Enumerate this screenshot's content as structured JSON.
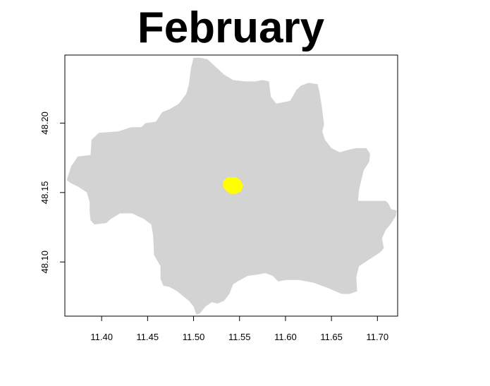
{
  "title": "February",
  "colors": {
    "region_fill": "#d3d3d3",
    "highlight_fill": "#ffff00",
    "axis": "#000000",
    "background": "#ffffff"
  },
  "map": {
    "x_range": [
      11.36,
      11.722
    ],
    "y_range": [
      48.061,
      48.249
    ],
    "x_ticks": [
      {
        "value": 11.4,
        "label": "11.40"
      },
      {
        "value": 11.45,
        "label": "11.45"
      },
      {
        "value": 11.5,
        "label": "11.50"
      },
      {
        "value": 11.55,
        "label": "11.55"
      },
      {
        "value": 11.6,
        "label": "11.60"
      },
      {
        "value": 11.65,
        "label": "11.65"
      },
      {
        "value": 11.7,
        "label": "11.70"
      }
    ],
    "y_ticks": [
      {
        "value": 48.1,
        "label": "48.10"
      },
      {
        "value": 48.15,
        "label": "48.15"
      },
      {
        "value": 48.2,
        "label": "48.20"
      }
    ],
    "region_outline": [
      [
        11.362,
        48.159
      ],
      [
        11.367,
        48.169
      ],
      [
        11.374,
        48.176
      ],
      [
        11.388,
        48.177
      ],
      [
        11.389,
        48.188
      ],
      [
        11.397,
        48.193
      ],
      [
        11.418,
        48.194
      ],
      [
        11.432,
        48.197
      ],
      [
        11.443,
        48.197
      ],
      [
        11.448,
        48.2
      ],
      [
        11.459,
        48.201
      ],
      [
        11.466,
        48.208
      ],
      [
        11.474,
        48.21
      ],
      [
        11.484,
        48.214
      ],
      [
        11.492,
        48.221
      ],
      [
        11.495,
        48.228
      ],
      [
        11.497,
        48.239
      ],
      [
        11.5,
        48.247
      ],
      [
        11.507,
        48.247
      ],
      [
        11.515,
        48.246
      ],
      [
        11.525,
        48.24
      ],
      [
        11.533,
        48.235
      ],
      [
        11.543,
        48.231
      ],
      [
        11.556,
        48.23
      ],
      [
        11.567,
        48.23
      ],
      [
        11.575,
        48.231
      ],
      [
        11.582,
        48.23
      ],
      [
        11.584,
        48.219
      ],
      [
        11.59,
        48.214
      ],
      [
        11.605,
        48.216
      ],
      [
        11.612,
        48.224
      ],
      [
        11.617,
        48.227
      ],
      [
        11.625,
        48.229
      ],
      [
        11.635,
        48.228
      ],
      [
        11.637,
        48.222
      ],
      [
        11.639,
        48.214
      ],
      [
        11.642,
        48.199
      ],
      [
        11.64,
        48.194
      ],
      [
        11.643,
        48.188
      ],
      [
        11.65,
        48.182
      ],
      [
        11.659,
        48.179
      ],
      [
        11.67,
        48.181
      ],
      [
        11.677,
        48.182
      ],
      [
        11.688,
        48.182
      ],
      [
        11.692,
        48.178
      ],
      [
        11.691,
        48.172
      ],
      [
        11.685,
        48.166
      ],
      [
        11.68,
        48.152
      ],
      [
        11.679,
        48.144
      ],
      [
        11.696,
        48.144
      ],
      [
        11.709,
        48.144
      ],
      [
        11.712,
        48.142
      ],
      [
        11.715,
        48.138
      ],
      [
        11.721,
        48.137
      ],
      [
        11.72,
        48.133
      ],
      [
        11.714,
        48.127
      ],
      [
        11.709,
        48.123
      ],
      [
        11.705,
        48.117
      ],
      [
        11.707,
        48.11
      ],
      [
        11.703,
        48.107
      ],
      [
        11.694,
        48.103
      ],
      [
        11.68,
        48.097
      ],
      [
        11.677,
        48.089
      ],
      [
        11.678,
        48.079
      ],
      [
        11.67,
        48.077
      ],
      [
        11.661,
        48.077
      ],
      [
        11.647,
        48.081
      ],
      [
        11.631,
        48.085
      ],
      [
        11.615,
        48.087
      ],
      [
        11.601,
        48.087
      ],
      [
        11.592,
        48.086
      ],
      [
        11.586,
        48.09
      ],
      [
        11.578,
        48.092
      ],
      [
        11.57,
        48.091
      ],
      [
        11.559,
        48.09
      ],
      [
        11.548,
        48.086
      ],
      [
        11.543,
        48.084
      ],
      [
        11.539,
        48.077
      ],
      [
        11.533,
        48.072
      ],
      [
        11.526,
        48.07
      ],
      [
        11.52,
        48.071
      ],
      [
        11.513,
        48.068
      ],
      [
        11.507,
        48.063
      ],
      [
        11.503,
        48.062
      ],
      [
        11.5,
        48.068
      ],
      [
        11.495,
        48.072
      ],
      [
        11.482,
        48.079
      ],
      [
        11.474,
        48.082
      ],
      [
        11.467,
        48.083
      ],
      [
        11.464,
        48.088
      ],
      [
        11.464,
        48.097
      ],
      [
        11.457,
        48.105
      ],
      [
        11.456,
        48.119
      ],
      [
        11.454,
        48.127
      ],
      [
        11.446,
        48.131
      ],
      [
        11.433,
        48.135
      ],
      [
        11.42,
        48.135
      ],
      [
        11.41,
        48.131
      ],
      [
        11.405,
        48.128
      ],
      [
        11.392,
        48.127
      ],
      [
        11.388,
        48.13
      ],
      [
        11.387,
        48.136
      ],
      [
        11.387,
        48.143
      ],
      [
        11.384,
        48.15
      ],
      [
        11.375,
        48.154
      ],
      [
        11.366,
        48.157
      ]
    ],
    "highlight_outline": [
      [
        11.537,
        48.161
      ],
      [
        11.546,
        48.161
      ],
      [
        11.551,
        48.159
      ],
      [
        11.554,
        48.155
      ],
      [
        11.552,
        48.151
      ],
      [
        11.546,
        48.149
      ],
      [
        11.54,
        48.149
      ],
      [
        11.536,
        48.151
      ],
      [
        11.532,
        48.154
      ],
      [
        11.532,
        48.158
      ]
    ]
  }
}
